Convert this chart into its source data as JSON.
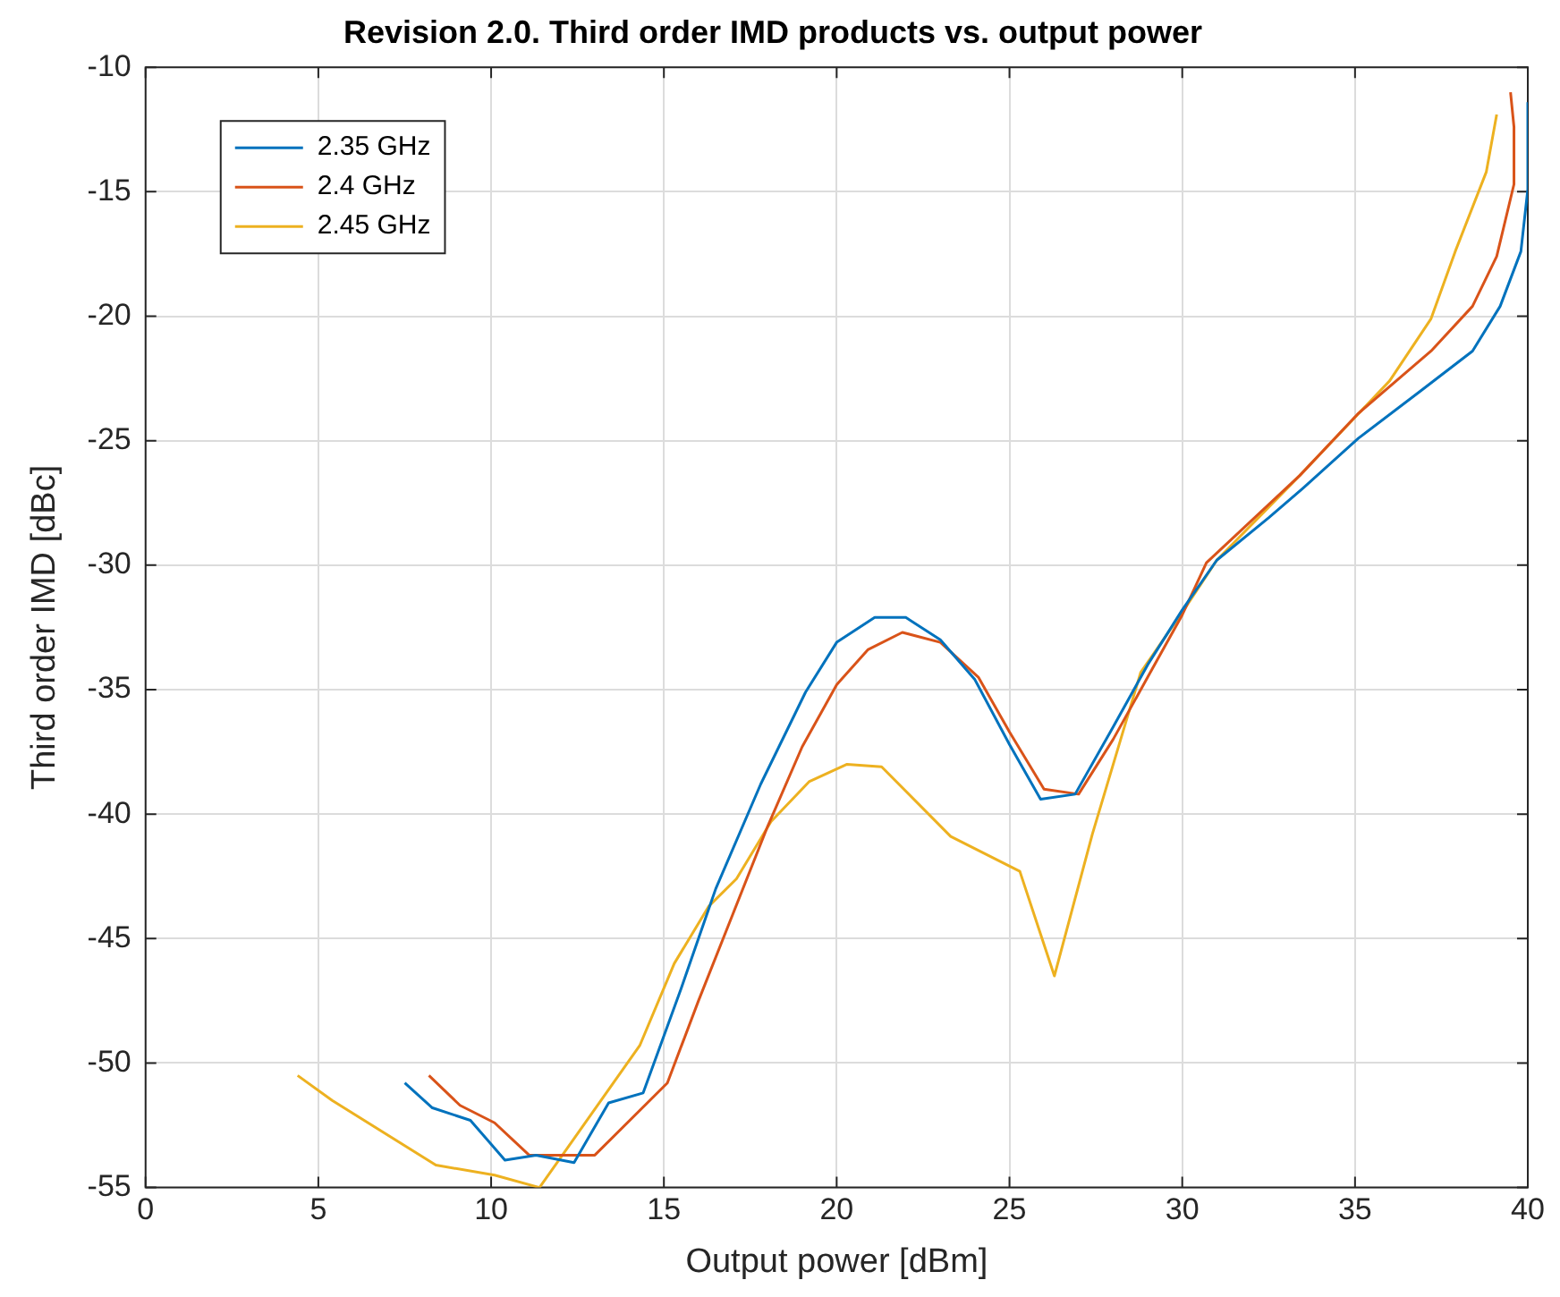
{
  "chart_data": {
    "type": "line",
    "title": "Revision 2.0. Third order IMD products vs. output power",
    "xlabel": "Output power [dBm]",
    "ylabel": "Third order IMD [dBc]",
    "xlim": [
      0,
      40
    ],
    "xticks": [
      0,
      5,
      10,
      15,
      20,
      25,
      30,
      35,
      40
    ],
    "ylim": [
      -55,
      -10
    ],
    "yticks": [
      -55,
      -50,
      -45,
      -40,
      -35,
      -30,
      -25,
      -20,
      -15,
      -10
    ],
    "grid": true,
    "legend": "top left",
    "marker": "none",
    "line_style": "solid",
    "series": [
      {
        "name": "2.35 GHz",
        "color": "#0072bd",
        "x": [
          7.5,
          8.3,
          9.4,
          10.4,
          11.3,
          12.4,
          13.4,
          14.4,
          15.5,
          16.5,
          17.8,
          19.1,
          20.0,
          21.1,
          22.0,
          23.0,
          24.0,
          25.0,
          25.9,
          26.9,
          28.0,
          29.0,
          30.0,
          31.0,
          32.5,
          33.5,
          35.1,
          36.9,
          38.4,
          39.2,
          39.8,
          40.0,
          40.0
        ],
        "values": [
          -50.8,
          -51.8,
          -52.3,
          -53.9,
          -53.7,
          -54.0,
          -51.6,
          -51.2,
          -47.0,
          -43.0,
          -38.8,
          -35.1,
          -33.1,
          -32.1,
          -32.1,
          -33.0,
          -34.6,
          -37.2,
          -39.4,
          -39.2,
          -36.5,
          -34.0,
          -31.8,
          -29.8,
          -28.1,
          -26.9,
          -24.9,
          -23.0,
          -21.4,
          -19.6,
          -17.4,
          -14.9,
          -11.4
        ]
      },
      {
        "name": "2.4 GHz",
        "color": "#d95319",
        "x": [
          8.2,
          9.1,
          10.1,
          11.1,
          13.0,
          15.1,
          16.0,
          17.0,
          18.0,
          19.0,
          20.0,
          20.9,
          21.9,
          23.0,
          24.1,
          25.0,
          26.0,
          27.0,
          28.0,
          29.0,
          30.0,
          30.7,
          33.4,
          35.1,
          37.2,
          38.4,
          39.1,
          39.6,
          39.6,
          39.5
        ],
        "values": [
          -50.5,
          -51.7,
          -52.4,
          -53.7,
          -53.7,
          -50.8,
          -47.5,
          -44.0,
          -40.5,
          -37.3,
          -34.8,
          -33.4,
          -32.7,
          -33.1,
          -34.5,
          -36.7,
          -39.0,
          -39.2,
          -37.0,
          -34.5,
          -32.0,
          -29.9,
          -26.4,
          -23.9,
          -21.4,
          -19.6,
          -17.6,
          -14.7,
          -12.4,
          -11.0
        ]
      },
      {
        "name": "2.45 GHz",
        "color": "#edb120",
        "x": [
          4.4,
          5.4,
          8.4,
          10.1,
          11.4,
          14.3,
          15.3,
          16.3,
          17.1,
          18.1,
          19.2,
          20.3,
          21.3,
          23.3,
          25.3,
          26.3,
          27.4,
          28.8,
          30.0,
          31.0,
          33.4,
          36.0,
          37.2,
          37.9,
          38.8,
          39.1
        ],
        "values": [
          -50.5,
          -51.5,
          -54.1,
          -54.5,
          -55.0,
          -49.3,
          -46.0,
          -43.7,
          -42.6,
          -40.3,
          -38.7,
          -38.0,
          -38.1,
          -40.9,
          -42.3,
          -46.5,
          -40.8,
          -34.3,
          -31.9,
          -29.8,
          -26.4,
          -22.6,
          -20.1,
          -17.4,
          -14.2,
          -11.9
        ]
      }
    ]
  }
}
